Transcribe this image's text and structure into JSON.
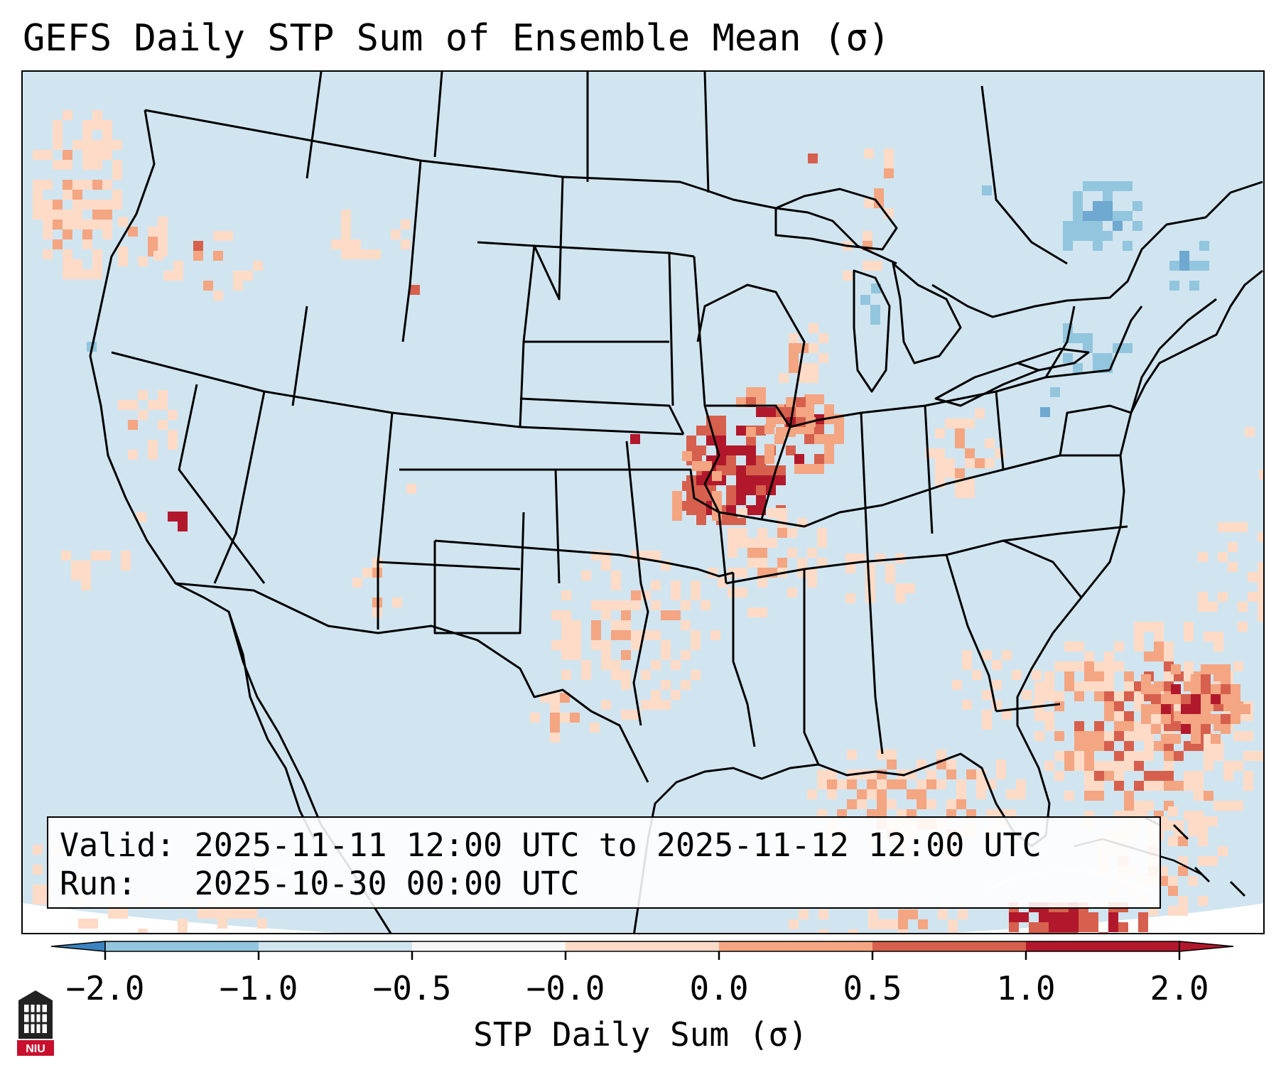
{
  "title": "GEFS Daily STP Sum of Ensemble Mean (σ)",
  "info": {
    "valid_line": "Valid: 2025-11-11 12:00 UTC to 2025-11-12 12:00 UTC",
    "run_line": "Run:   2025-10-30 00:00 UTC"
  },
  "colorbar": {
    "label": "STP Daily Sum (σ)",
    "ticks": [
      "−2.0",
      "−1.0",
      "−0.5",
      "−0.0",
      "0.0",
      "0.5",
      "1.0",
      "2.0"
    ],
    "colors": [
      "#3b83c0",
      "#92c5de",
      "#d1e5f0",
      "#f7f7f7",
      "#fddbc7",
      "#f4a582",
      "#d6604d",
      "#b2182b"
    ],
    "extend": "both"
  },
  "map": {
    "background_color": "#d1e5f0",
    "anomaly_regions": [
      {
        "region": "Iowa / Missouri border",
        "color": "#b2182b"
      },
      {
        "region": "Northern Illinois",
        "color": "#b2182b"
      },
      {
        "region": "Western Atlantic off Southeast coast",
        "color": "#d6604d"
      },
      {
        "region": "Caribbean south of Cuba",
        "color": "#b2182b"
      },
      {
        "region": "Southern California",
        "color": "#b2182b"
      },
      {
        "region": "Southern Quebec",
        "color": "#92c5de"
      }
    ]
  },
  "logo": {
    "text": "NIU"
  }
}
